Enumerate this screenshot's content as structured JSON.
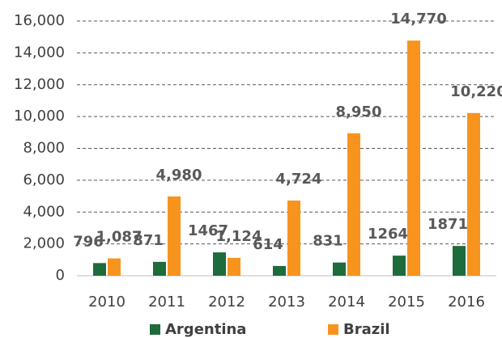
{
  "chart_data": {
    "type": "bar",
    "categories": [
      "2010",
      "2011",
      "2012",
      "2013",
      "2014",
      "2015",
      "2016"
    ],
    "series": [
      {
        "name": "Argentina",
        "color": "#1e6b3c",
        "values": [
          796,
          871,
          1467,
          614,
          831,
          1264,
          1871
        ]
      },
      {
        "name": "Brazil",
        "color": "#f7941d",
        "values": [
          1087,
          4980,
          1124,
          4724,
          8950,
          14770,
          10220
        ],
        "value_labels": [
          "1,087",
          "4,980",
          "1,124",
          "4,724",
          "8,950",
          "14,770",
          "10,220"
        ]
      }
    ],
    "ylim": [
      0,
      16000
    ],
    "yticks": [
      0,
      {
        "value": 2000,
        "label": "2,000"
      },
      {
        "value": 4000,
        "label": "4,000"
      },
      {
        "value": 6000,
        "label": "6,000"
      },
      {
        "value": 8000,
        "label": "8,000"
      },
      {
        "value": 10000,
        "label": "10,000"
      },
      {
        "value": 12000,
        "label": "12,000"
      },
      {
        "value": 14000,
        "label": "14,000"
      },
      {
        "value": 16000,
        "label": "16,000"
      }
    ],
    "grid": true,
    "legend": "bottom"
  }
}
